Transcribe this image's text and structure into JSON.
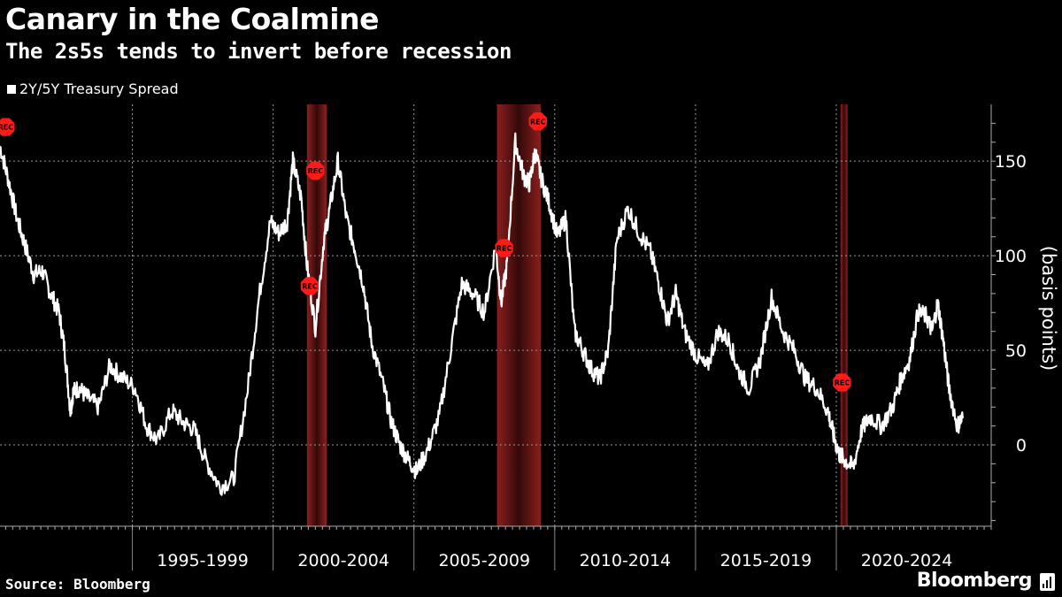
{
  "header": {
    "title": "Canary in the Coalmine",
    "subtitle": "The 2s5s tends to  invert before recession"
  },
  "legend": {
    "label": "2Y/5Y Treasury Spread"
  },
  "footer": {
    "source": "Source: Bloomberg",
    "brand": "Bloomberg"
  },
  "colors": {
    "background": "#000000",
    "line": "#ffffff",
    "recession": "#8b1e1e",
    "marker": "#ff1a1a",
    "grid": "#9a9a9a"
  },
  "chart_data": {
    "type": "line",
    "title": "Canary in the Coalmine",
    "subtitle": "The 2s5s tends to  invert before recession",
    "ylabel": "(basis points)",
    "ylim": [
      -43,
      180
    ],
    "yticks": [
      0,
      50,
      100,
      150
    ],
    "xlim": [
      1990.3,
      2025.5
    ],
    "x_axis_groups": [
      {
        "label": "1995-1999",
        "start": 1995,
        "end": 2000
      },
      {
        "label": "2000-2004",
        "start": 2000,
        "end": 2005
      },
      {
        "label": "2005-2009",
        "start": 2005,
        "end": 2010
      },
      {
        "label": "2010-2014",
        "start": 2010,
        "end": 2015
      },
      {
        "label": "2015-2019",
        "start": 2015,
        "end": 2020
      },
      {
        "label": "2020-2024",
        "start": 2020,
        "end": 2025
      }
    ],
    "recession_periods": [
      [
        2001.2,
        2001.9
      ],
      [
        2007.95,
        2009.5
      ],
      [
        2020.15,
        2020.4
      ]
    ],
    "annotations": [
      {
        "label": "REC",
        "x": 1990.5,
        "y": 168
      },
      {
        "label": "REC",
        "x": 2001.5,
        "y": 145
      },
      {
        "label": "REC",
        "x": 2001.3,
        "y": 84
      },
      {
        "label": "REC",
        "x": 2008.2,
        "y": 104
      },
      {
        "label": "REC",
        "x": 2009.4,
        "y": 171
      },
      {
        "label": "REC",
        "x": 2020.2,
        "y": 33
      }
    ],
    "series": [
      {
        "name": "2Y/5Y Treasury Spread",
        "x": [
          1990.3,
          1990.6,
          1990.9,
          1991.2,
          1991.5,
          1991.8,
          1992.1,
          1992.4,
          1992.6,
          1992.8,
          1992.9,
          1993.1,
          1993.4,
          1993.8,
          1994.2,
          1994.6,
          1995.1,
          1995.5,
          1995.9,
          1996.4,
          1996.8,
          1997.2,
          1997.6,
          1998.1,
          1998.6,
          1999.1,
          1999.5,
          1999.9,
          2000.2,
          2000.5,
          2000.7,
          2001.0,
          2001.2,
          2001.5,
          2001.8,
          2002.0,
          2002.3,
          2002.6,
          2002.9,
          2003.2,
          2003.5,
          2003.9,
          2004.2,
          2004.5,
          2004.8,
          2005.1,
          2005.5,
          2005.9,
          2006.3,
          2006.7,
          2007.1,
          2007.5,
          2007.9,
          2008.1,
          2008.3,
          2008.6,
          2008.9,
          2009.1,
          2009.3,
          2009.5,
          2009.8,
          2010.1,
          2010.4,
          2010.7,
          2011.0,
          2011.3,
          2011.6,
          2011.9,
          2012.2,
          2012.6,
          2013.0,
          2013.4,
          2013.7,
          2014.0,
          2014.3,
          2014.6,
          2015.0,
          2015.4,
          2015.8,
          2016.2,
          2016.5,
          2016.9,
          2017.3,
          2017.7,
          2018.1,
          2018.5,
          2018.9,
          2019.3,
          2019.7,
          2019.9,
          2020.1,
          2020.3,
          2020.6,
          2020.9,
          2021.2,
          2021.6,
          2022.0,
          2022.3,
          2022.6,
          2022.9,
          2023.2,
          2023.4,
          2023.6,
          2023.8,
          2024.0,
          2024.3,
          2024.5
        ],
        "values": [
          158,
          140,
          120,
          105,
          90,
          92,
          80,
          70,
          50,
          18,
          28,
          30,
          25,
          20,
          42,
          36,
          30,
          10,
          2,
          18,
          12,
          8,
          -8,
          -22,
          -18,
          30,
          78,
          118,
          112,
          118,
          150,
          130,
          95,
          62,
          108,
          124,
          150,
          120,
          104,
          85,
          54,
          32,
          12,
          0,
          -8,
          -14,
          -2,
          15,
          50,
          85,
          80,
          70,
          105,
          75,
          95,
          160,
          142,
          138,
          155,
          142,
          128,
          110,
          120,
          60,
          50,
          40,
          35,
          50,
          108,
          125,
          112,
          102,
          85,
          65,
          80,
          60,
          48,
          40,
          60,
          55,
          40,
          30,
          45,
          78,
          60,
          50,
          35,
          30,
          18,
          5,
          -5,
          -8,
          -12,
          8,
          15,
          10,
          20,
          35,
          45,
          70,
          68,
          60,
          75,
          55,
          30,
          10,
          15
        ]
      }
    ]
  }
}
